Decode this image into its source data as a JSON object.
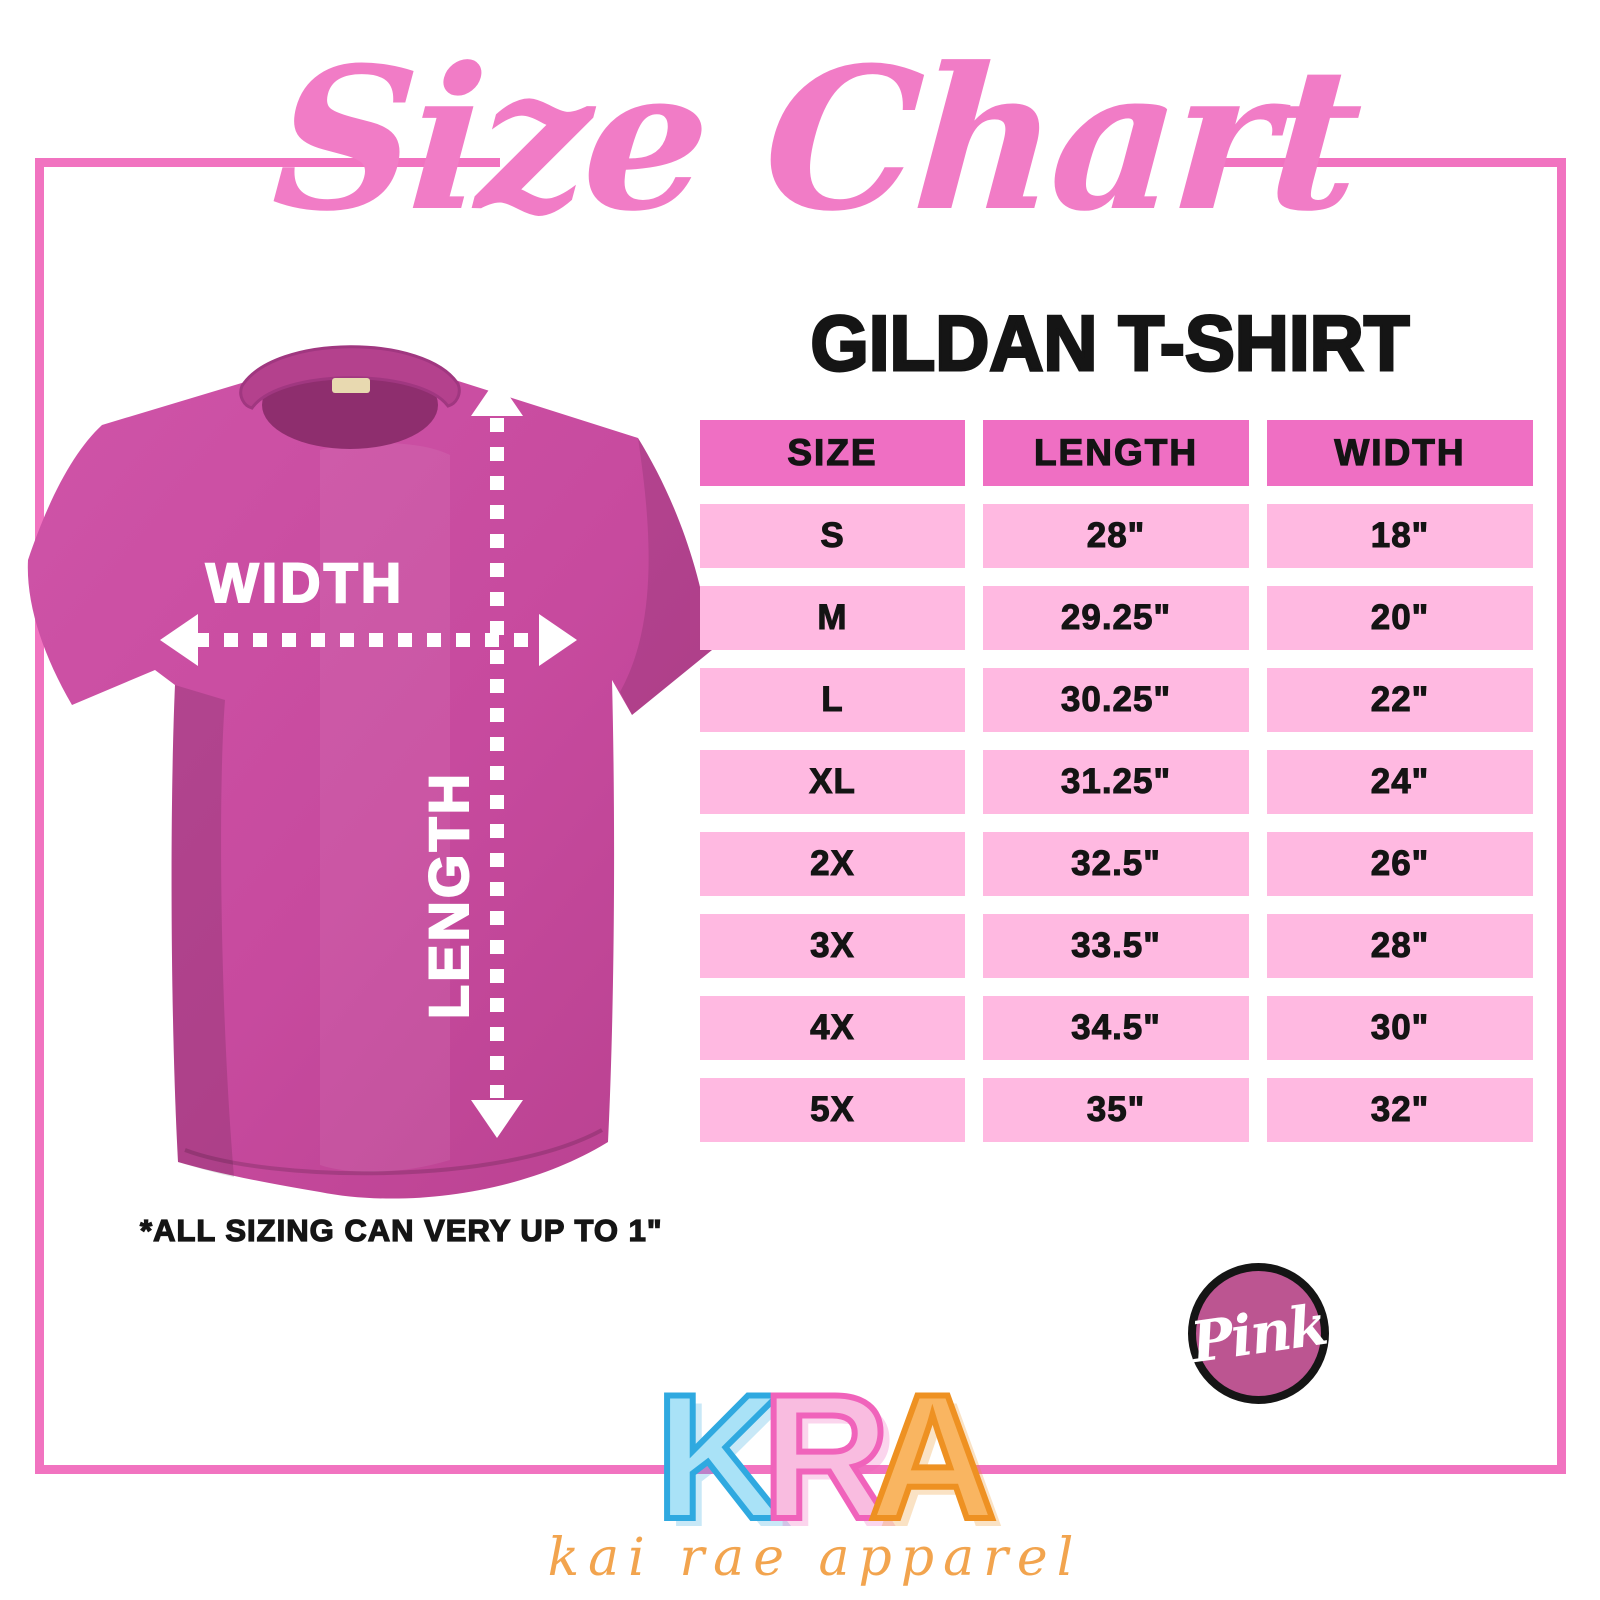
{
  "title": {
    "text": "Size Chart",
    "color": "#f17cc6"
  },
  "subtitle": {
    "text": "GILDAN T-SHIRT"
  },
  "frame": {
    "color": "#f173c0"
  },
  "shirt": {
    "color": "#c74a9e",
    "width_label": "WIDTH",
    "length_label": "LENGTH"
  },
  "chart_data": {
    "type": "table",
    "title": "GILDAN T-SHIRT",
    "columns": [
      "SIZE",
      "LENGTH",
      "WIDTH"
    ],
    "rows": [
      [
        "S",
        "28\"",
        "18\""
      ],
      [
        "M",
        "29.25\"",
        "20\""
      ],
      [
        "L",
        "30.25\"",
        "22\""
      ],
      [
        "XL",
        "31.25\"",
        "24\""
      ],
      [
        "2X",
        "32.5\"",
        "26\""
      ],
      [
        "3X",
        "33.5\"",
        "28\""
      ],
      [
        "4X",
        "34.5\"",
        "30\""
      ],
      [
        "5X",
        "35\"",
        "32\""
      ]
    ],
    "header_bg": "#ef6fc3",
    "row_bg": "#ffb9e1",
    "units": "inches"
  },
  "note": {
    "text": "*ALL SIZING CAN VERY UP TO 1\""
  },
  "badge": {
    "text": "Pink",
    "bg": "#bc5591"
  },
  "logo": {
    "letters": [
      {
        "char": "K",
        "fill": "#a9e2f7",
        "stroke": "#2fa9e0"
      },
      {
        "char": "R",
        "fill": "#f9bce0",
        "stroke": "#f063bb"
      },
      {
        "char": "A",
        "fill": "#f9b561",
        "stroke": "#ee9122"
      }
    ],
    "tagline": "kai rae apparel"
  }
}
